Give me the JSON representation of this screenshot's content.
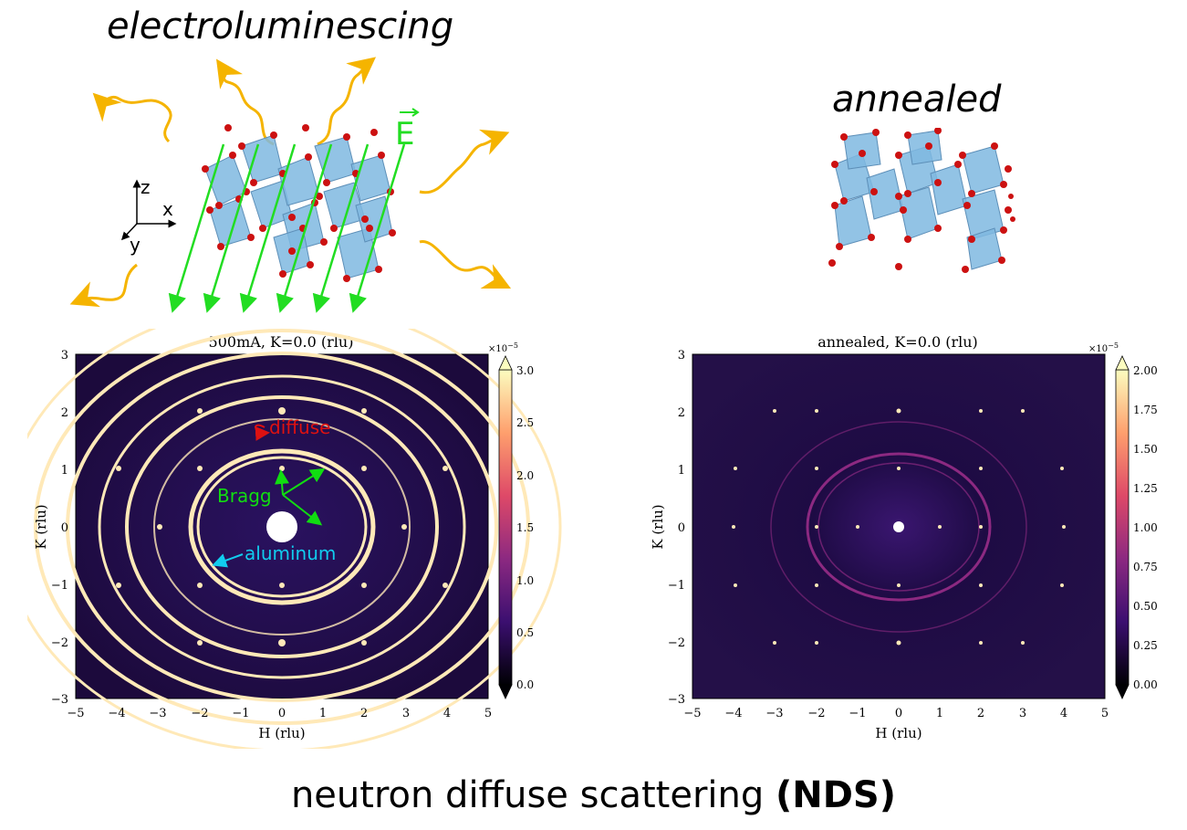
{
  "top_left": {
    "title": "electroluminescing",
    "field_label": "E",
    "axes": {
      "z": "z",
      "x": "x",
      "y": "y"
    }
  },
  "top_right": {
    "title": "annealed"
  },
  "panels": [
    {
      "id": "electroluminescing",
      "title": "500mA, K=0.0 (rlu)",
      "xlabel": "H (rlu)",
      "ylabel": "K (rlu)",
      "xticks": [
        "−5",
        "−4",
        "−3",
        "−2",
        "−1",
        "0",
        "1",
        "2",
        "3",
        "4",
        "5"
      ],
      "yticks": [
        "3",
        "2",
        "1",
        "0",
        "−1",
        "−2",
        "−3"
      ],
      "colorbar": {
        "exponent": "×10",
        "exponent_power": "−5",
        "ticks": [
          "3.0",
          "2.5",
          "2.0",
          "1.5",
          "1.0",
          "0.5",
          "0.0"
        ]
      },
      "annotations": {
        "diffuse": "diffuse",
        "bragg": "Bragg",
        "aluminum": "aluminum"
      }
    },
    {
      "id": "annealed",
      "title": "annealed, K=0.0 (rlu)",
      "xlabel": "H (rlu)",
      "ylabel": "K (rlu)",
      "xticks": [
        "−5",
        "−4",
        "−3",
        "−2",
        "−1",
        "0",
        "1",
        "2",
        "3",
        "4",
        "5"
      ],
      "yticks": [
        "3",
        "2",
        "1",
        "0",
        "−1",
        "−2",
        "−3"
      ],
      "colorbar": {
        "exponent": "×10",
        "exponent_power": "−5",
        "ticks": [
          "2.00",
          "1.75",
          "1.50",
          "1.25",
          "1.00",
          "0.75",
          "0.50",
          "0.25",
          "0.00"
        ]
      }
    }
  ],
  "footer": {
    "text": "neutron diffuse scattering ",
    "bold": "(NDS)"
  },
  "colors": {
    "photon": "#f5b400",
    "field": "#22dd22",
    "octahedron": "#7fb8e0",
    "oxygen": "#cc1111",
    "diffuse_annotation": "#dd1111",
    "bragg_annotation": "#11dd11",
    "aluminum_annotation": "#11ccee",
    "map_background": "#1c0a3c"
  }
}
